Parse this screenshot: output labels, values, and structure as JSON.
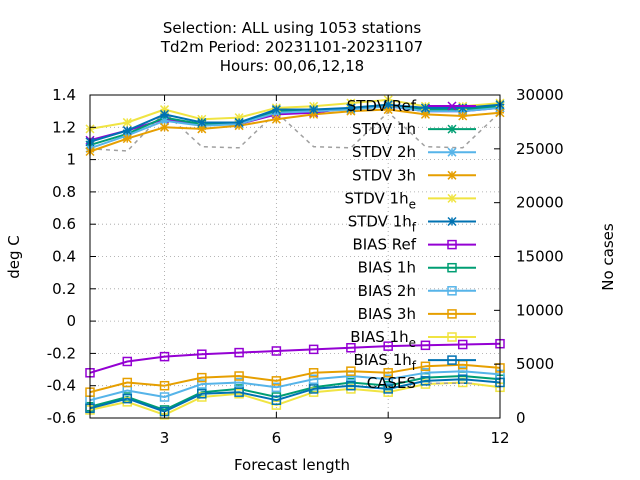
{
  "chart_data": {
    "type": "line",
    "title_lines": [
      "Selection: ALL using  1053 stations",
      "Td2m   Period: 20231101-20231107",
      "Hours:  00,06,12,18"
    ],
    "xlabel": "Forecast length",
    "ylabel": "deg C",
    "y2label": "No cases",
    "xlim": [
      1,
      12
    ],
    "ylim": [
      -0.6,
      1.4
    ],
    "y2lim": [
      0,
      30000
    ],
    "xticks": [
      "3",
      "6",
      "9",
      "12"
    ],
    "yticks": [
      "1.4",
      "1.2",
      "1",
      "0.8",
      "0.6",
      "0.4",
      "0.2",
      "0",
      "-0.2",
      "-0.4",
      "-0.6"
    ],
    "y2ticks": [
      "30000",
      "25000",
      "20000",
      "15000",
      "10000",
      "5000",
      "0"
    ],
    "grid": true,
    "legend_position": "right-inside",
    "x": [
      1,
      2,
      3,
      4,
      5,
      6,
      7,
      8,
      9,
      10,
      11,
      12
    ],
    "series": [
      {
        "name": "STDV Ref",
        "sub": "",
        "axis": "y1",
        "marker": "x",
        "color": "#9400d3",
        "values": [
          1.12,
          1.18,
          1.25,
          1.22,
          1.22,
          1.28,
          1.29,
          1.32,
          1.33,
          1.3,
          1.3,
          1.32
        ]
      },
      {
        "name": "STDV 1h",
        "sub": "",
        "axis": "y1",
        "marker": "star",
        "color": "#009e73",
        "values": [
          1.09,
          1.16,
          1.26,
          1.22,
          1.23,
          1.3,
          1.3,
          1.32,
          1.34,
          1.31,
          1.31,
          1.33
        ]
      },
      {
        "name": "STDV 2h",
        "sub": "",
        "axis": "y1",
        "marker": "star",
        "color": "#56b4e9",
        "values": [
          1.07,
          1.15,
          1.24,
          1.21,
          1.22,
          1.29,
          1.3,
          1.31,
          1.33,
          1.3,
          1.3,
          1.32
        ]
      },
      {
        "name": "STDV 3h",
        "sub": "",
        "axis": "y1",
        "marker": "star",
        "color": "#e69f00",
        "values": [
          1.05,
          1.13,
          1.2,
          1.19,
          1.21,
          1.25,
          1.28,
          1.3,
          1.31,
          1.28,
          1.27,
          1.29
        ]
      },
      {
        "name": "STDV 1h",
        "sub": "e",
        "axis": "y1",
        "marker": "star",
        "color": "#f0e442",
        "values": [
          1.19,
          1.23,
          1.31,
          1.25,
          1.26,
          1.32,
          1.33,
          1.35,
          1.37,
          1.33,
          1.33,
          1.35
        ]
      },
      {
        "name": "STDV 1h",
        "sub": "f",
        "axis": "y1",
        "marker": "star",
        "color": "#0072b2",
        "values": [
          1.11,
          1.18,
          1.28,
          1.23,
          1.23,
          1.31,
          1.31,
          1.32,
          1.34,
          1.32,
          1.32,
          1.34
        ]
      },
      {
        "name": "BIAS Ref",
        "sub": "",
        "axis": "y1",
        "marker": "square",
        "color": "#9400d3",
        "values": [
          -0.32,
          -0.25,
          -0.22,
          -0.205,
          -0.195,
          -0.185,
          -0.175,
          -0.165,
          -0.155,
          -0.15,
          -0.145,
          -0.14
        ]
      },
      {
        "name": "BIAS 1h",
        "sub": "",
        "axis": "y1",
        "marker": "square",
        "color": "#009e73",
        "values": [
          -0.53,
          -0.47,
          -0.55,
          -0.44,
          -0.42,
          -0.47,
          -0.41,
          -0.38,
          -0.4,
          -0.35,
          -0.34,
          -0.36
        ]
      },
      {
        "name": "BIAS 2h",
        "sub": "",
        "axis": "y1",
        "marker": "square",
        "color": "#56b4e9",
        "values": [
          -0.49,
          -0.43,
          -0.47,
          -0.39,
          -0.38,
          -0.41,
          -0.36,
          -0.34,
          -0.36,
          -0.32,
          -0.31,
          -0.33
        ]
      },
      {
        "name": "BIAS 3h",
        "sub": "",
        "axis": "y1",
        "marker": "square",
        "color": "#e69f00",
        "values": [
          -0.44,
          -0.38,
          -0.4,
          -0.35,
          -0.34,
          -0.37,
          -0.32,
          -0.31,
          -0.32,
          -0.28,
          -0.27,
          -0.29
        ]
      },
      {
        "name": "BIAS 1h",
        "sub": "e",
        "axis": "y1",
        "marker": "square",
        "color": "#f0e442",
        "values": [
          -0.55,
          -0.5,
          -0.58,
          -0.47,
          -0.45,
          -0.52,
          -0.44,
          -0.42,
          -0.44,
          -0.39,
          -0.38,
          -0.41
        ]
      },
      {
        "name": "BIAS 1h",
        "sub": "f",
        "axis": "y1",
        "marker": "square",
        "color": "#0072b2",
        "values": [
          -0.54,
          -0.48,
          -0.56,
          -0.45,
          -0.44,
          -0.49,
          -0.42,
          -0.4,
          -0.42,
          -0.37,
          -0.36,
          -0.38
        ]
      },
      {
        "name": "CASES",
        "sub": "",
        "axis": "y2",
        "marker": "none",
        "dashed": true,
        "color": "#a0a0a0",
        "values": [
          25000,
          24800,
          28400,
          25200,
          25100,
          28400,
          25200,
          25100,
          28400,
          25200,
          25100,
          28400
        ]
      }
    ]
  }
}
